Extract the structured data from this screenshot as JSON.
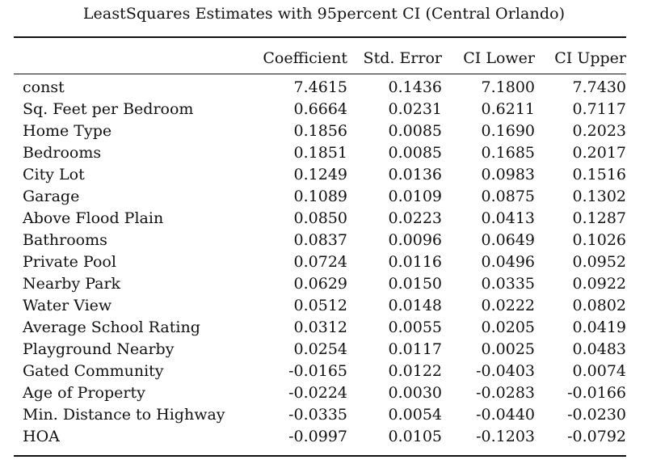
{
  "caption": "LeastSquares Estimates with 95percent CI (Central Orlando)",
  "columns": [
    "",
    "Coefficient",
    "Std. Error",
    "CI Lower",
    "CI Upper"
  ],
  "rows": [
    {
      "variable": "const",
      "coefficient": "7.4615",
      "std_error": "0.1436",
      "ci_lower": "7.1800",
      "ci_upper": "7.7430"
    },
    {
      "variable": "Sq. Feet per Bedroom",
      "coefficient": "0.6664",
      "std_error": "0.0231",
      "ci_lower": "0.6211",
      "ci_upper": "0.7117"
    },
    {
      "variable": "Home Type",
      "coefficient": "0.1856",
      "std_error": "0.0085",
      "ci_lower": "0.1690",
      "ci_upper": "0.2023"
    },
    {
      "variable": "Bedrooms",
      "coefficient": "0.1851",
      "std_error": "0.0085",
      "ci_lower": "0.1685",
      "ci_upper": "0.2017"
    },
    {
      "variable": "City Lot",
      "coefficient": "0.1249",
      "std_error": "0.0136",
      "ci_lower": "0.0983",
      "ci_upper": "0.1516"
    },
    {
      "variable": "Garage",
      "coefficient": "0.1089",
      "std_error": "0.0109",
      "ci_lower": "0.0875",
      "ci_upper": "0.1302"
    },
    {
      "variable": "Above Flood Plain",
      "coefficient": "0.0850",
      "std_error": "0.0223",
      "ci_lower": "0.0413",
      "ci_upper": "0.1287"
    },
    {
      "variable": "Bathrooms",
      "coefficient": "0.0837",
      "std_error": "0.0096",
      "ci_lower": "0.0649",
      "ci_upper": "0.1026"
    },
    {
      "variable": "Private Pool",
      "coefficient": "0.0724",
      "std_error": "0.0116",
      "ci_lower": "0.0496",
      "ci_upper": "0.0952"
    },
    {
      "variable": "Nearby Park",
      "coefficient": "0.0629",
      "std_error": "0.0150",
      "ci_lower": "0.0335",
      "ci_upper": "0.0922"
    },
    {
      "variable": "Water View",
      "coefficient": "0.0512",
      "std_error": "0.0148",
      "ci_lower": "0.0222",
      "ci_upper": "0.0802"
    },
    {
      "variable": "Average School Rating",
      "coefficient": "0.0312",
      "std_error": "0.0055",
      "ci_lower": "0.0205",
      "ci_upper": "0.0419"
    },
    {
      "variable": "Playground Nearby",
      "coefficient": "0.0254",
      "std_error": "0.0117",
      "ci_lower": "0.0025",
      "ci_upper": "0.0483"
    },
    {
      "variable": "Gated Community",
      "coefficient": "-0.0165",
      "std_error": "0.0122",
      "ci_lower": "-0.0403",
      "ci_upper": "0.0074"
    },
    {
      "variable": "Age of Property",
      "coefficient": "-0.0224",
      "std_error": "0.0030",
      "ci_lower": "-0.0283",
      "ci_upper": "-0.0166"
    },
    {
      "variable": "Min. Distance to Highway",
      "coefficient": "-0.0335",
      "std_error": "0.0054",
      "ci_lower": "-0.0440",
      "ci_upper": "-0.0230"
    },
    {
      "variable": "HOA",
      "coefficient": "-0.0997",
      "std_error": "0.0105",
      "ci_lower": "-0.1203",
      "ci_upper": "-0.0792"
    }
  ]
}
